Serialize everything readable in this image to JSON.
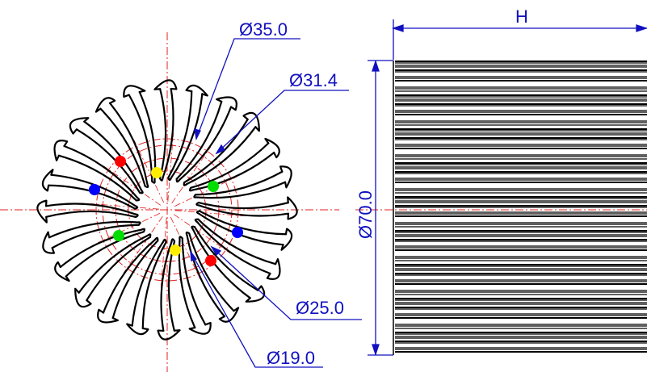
{
  "drawing": {
    "dimensions": {
      "d35": "Ø35.0",
      "d31_4": "Ø31.4",
      "d25": "Ø25.0",
      "d19": "Ø19.0",
      "d70": "Ø70.0",
      "height": "H"
    },
    "fin_count": 24,
    "colors": {
      "outline": "#000000",
      "centerline": "#e02020",
      "dimension": "#1010c0",
      "marker_red": "#ff0000",
      "marker_yellow": "#ffee00",
      "marker_green": "#00dd00",
      "marker_blue": "#0000ff"
    }
  }
}
